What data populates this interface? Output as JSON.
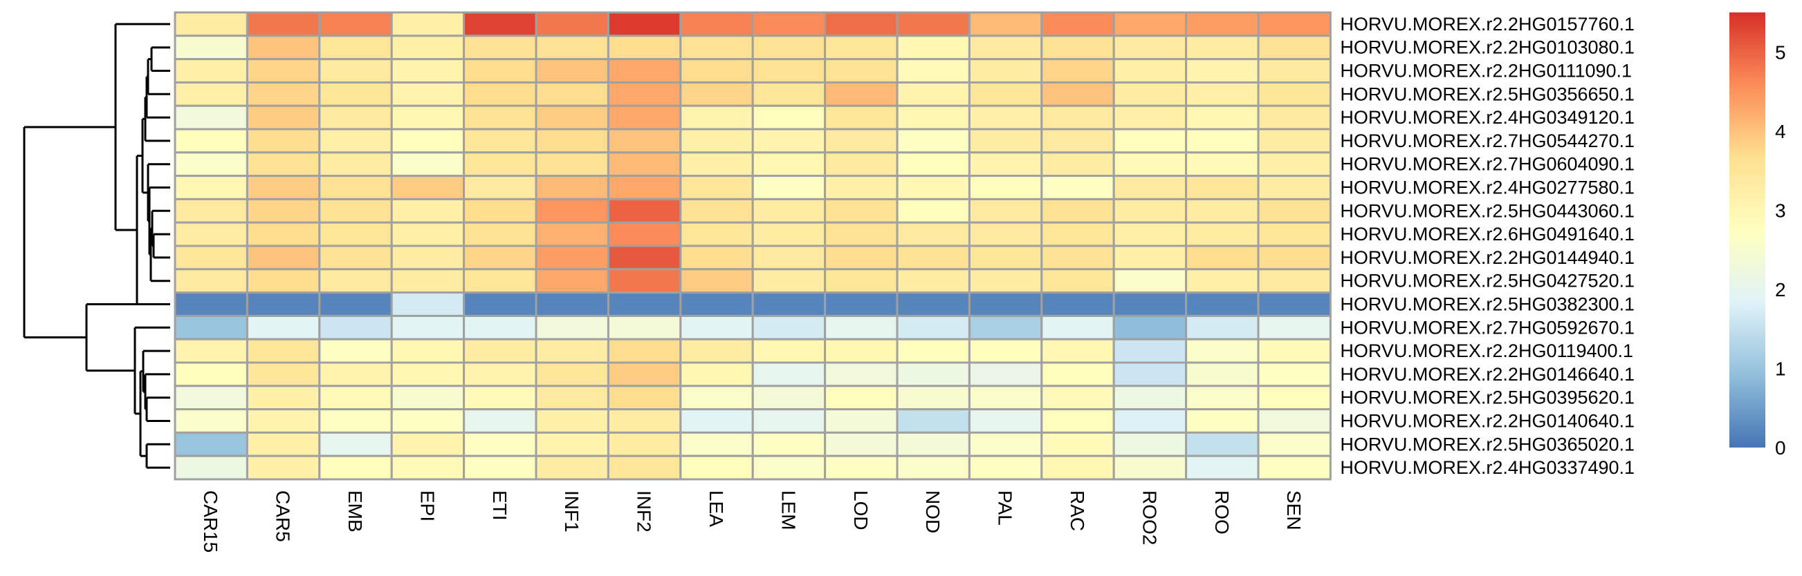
{
  "chart_data": {
    "type": "heatmap",
    "title": "",
    "columns": [
      "CAR15",
      "CAR5",
      "EMB",
      "EPI",
      "ETI",
      "INF1",
      "INF2",
      "LEA",
      "LEM",
      "LOD",
      "NOD",
      "PAL",
      "RAC",
      "ROO2",
      "ROO",
      "SEN"
    ],
    "rows": [
      "HORVU.MOREX.r2.2HG0157760.1",
      "HORVU.MOREX.r2.2HG0103080.1",
      "HORVU.MOREX.r2.2HG0111090.1",
      "HORVU.MOREX.r2.5HG0356650.1",
      "HORVU.MOREX.r2.4HG0349120.1",
      "HORVU.MOREX.r2.7HG0544270.1",
      "HORVU.MOREX.r2.7HG0604090.1",
      "HORVU.MOREX.r2.4HG0277580.1",
      "HORVU.MOREX.r2.5HG0443060.1",
      "HORVU.MOREX.r2.6HG0491640.1",
      "HORVU.MOREX.r2.2HG0144940.1",
      "HORVU.MOREX.r2.5HG0427520.1",
      "HORVU.MOREX.r2.5HG0382300.1",
      "HORVU.MOREX.r2.7HG0592670.1",
      "HORVU.MOREX.r2.2HG0119400.1",
      "HORVU.MOREX.r2.2HG0146640.1",
      "HORVU.MOREX.r2.5HG0395620.1",
      "HORVU.MOREX.r2.2HG0140640.1",
      "HORVU.MOREX.r2.5HG0365020.1",
      "HORVU.MOREX.r2.4HG0337490.1"
    ],
    "values": [
      [
        3.3,
        4.8,
        4.7,
        3.2,
        5.3,
        4.8,
        5.4,
        4.7,
        4.6,
        4.9,
        4.8,
        4.1,
        4.6,
        4.3,
        4.4,
        4.5
      ],
      [
        2.5,
        4.0,
        3.5,
        3.2,
        3.6,
        3.6,
        3.7,
        3.6,
        3.6,
        3.5,
        3.0,
        3.4,
        3.6,
        3.4,
        3.3,
        3.6
      ],
      [
        3.2,
        3.8,
        3.4,
        3.1,
        3.7,
        4.0,
        4.3,
        3.7,
        3.6,
        3.6,
        2.9,
        3.3,
        3.8,
        3.2,
        3.1,
        3.4
      ],
      [
        3.2,
        3.8,
        3.5,
        3.1,
        3.7,
        3.7,
        4.3,
        3.8,
        3.5,
        4.1,
        3.1,
        3.5,
        4.0,
        3.3,
        3.2,
        3.5
      ],
      [
        2.3,
        3.9,
        3.4,
        3.0,
        3.6,
        3.9,
        4.3,
        3.1,
        2.8,
        3.5,
        3.0,
        3.2,
        3.4,
        3.2,
        3.0,
        3.4
      ],
      [
        2.8,
        3.7,
        3.2,
        2.8,
        3.5,
        3.7,
        4.0,
        3.2,
        3.1,
        3.4,
        2.7,
        3.3,
        3.4,
        2.8,
        2.8,
        3.3
      ],
      [
        2.6,
        3.6,
        3.3,
        2.6,
        3.5,
        3.6,
        4.1,
        3.2,
        3.0,
        3.4,
        2.8,
        3.1,
        3.3,
        2.9,
        2.9,
        3.2
      ],
      [
        3.0,
        3.9,
        3.6,
        3.9,
        3.4,
        4.1,
        4.3,
        3.5,
        2.7,
        3.2,
        3.0,
        2.8,
        2.7,
        3.4,
        3.5,
        3.3
      ],
      [
        3.4,
        3.8,
        3.6,
        3.2,
        3.7,
        4.5,
        5.0,
        3.6,
        3.3,
        3.6,
        2.8,
        3.4,
        3.6,
        3.3,
        3.3,
        3.6
      ],
      [
        3.3,
        3.7,
        3.5,
        3.2,
        3.6,
        4.2,
        4.6,
        3.5,
        3.3,
        3.6,
        3.4,
        3.4,
        3.5,
        3.2,
        3.3,
        3.5
      ],
      [
        3.5,
        4.0,
        3.6,
        3.3,
        3.8,
        4.4,
        5.1,
        3.7,
        3.4,
        3.7,
        3.6,
        3.5,
        3.6,
        3.2,
        3.7,
        3.7
      ],
      [
        3.4,
        3.7,
        3.4,
        3.3,
        3.5,
        4.3,
        4.8,
        3.9,
        3.3,
        3.5,
        3.3,
        3.3,
        3.5,
        2.6,
        3.2,
        3.4
      ],
      [
        0.2,
        0.2,
        0.2,
        1.7,
        0.2,
        0.2,
        0.2,
        0.2,
        0.2,
        0.2,
        0.2,
        0.2,
        0.2,
        0.2,
        0.2,
        0.2
      ],
      [
        1.0,
        1.9,
        1.6,
        1.9,
        1.9,
        2.3,
        2.4,
        1.9,
        1.7,
        2.0,
        1.7,
        1.2,
        1.9,
        0.9,
        1.7,
        2.0
      ],
      [
        3.1,
        3.5,
        2.7,
        3.0,
        3.3,
        3.3,
        3.7,
        3.3,
        3.0,
        3.0,
        2.8,
        2.8,
        3.0,
        1.6,
        2.6,
        2.9
      ],
      [
        2.8,
        3.5,
        3.1,
        3.0,
        3.1,
        3.5,
        3.9,
        3.0,
        2.0,
        2.3,
        2.2,
        2.1,
        2.8,
        1.6,
        2.5,
        2.7
      ],
      [
        2.3,
        3.2,
        2.9,
        2.5,
        2.9,
        3.4,
        3.7,
        2.6,
        2.4,
        2.8,
        2.5,
        2.6,
        2.9,
        2.2,
        2.6,
        2.8
      ],
      [
        2.6,
        3.1,
        2.7,
        2.7,
        2.0,
        3.2,
        3.3,
        1.9,
        2.0,
        2.4,
        1.5,
        2.0,
        2.8,
        1.8,
        2.7,
        2.3
      ],
      [
        1.0,
        3.2,
        2.0,
        3.1,
        2.7,
        3.1,
        3.3,
        2.6,
        2.7,
        2.4,
        2.4,
        2.6,
        2.9,
        2.2,
        1.5,
        2.6
      ],
      [
        2.2,
        3.2,
        2.8,
        2.9,
        2.7,
        3.3,
        3.5,
        2.8,
        2.6,
        2.7,
        2.6,
        2.7,
        3.0,
        2.5,
        1.9,
        2.7
      ]
    ],
    "color_scale": {
      "min": 0,
      "max": 5.5,
      "stops": [
        "#4575b4",
        "#91bfdb",
        "#e0f3f8",
        "#ffffbf",
        "#fee090",
        "#fc8d59",
        "#d73027"
      ],
      "ticks": [
        0,
        1,
        2,
        3,
        4,
        5
      ]
    },
    "cell_border_color": "#a0a0a0",
    "row_dendrogram": {
      "shown": true
    },
    "legend": {
      "placement": "right"
    }
  }
}
